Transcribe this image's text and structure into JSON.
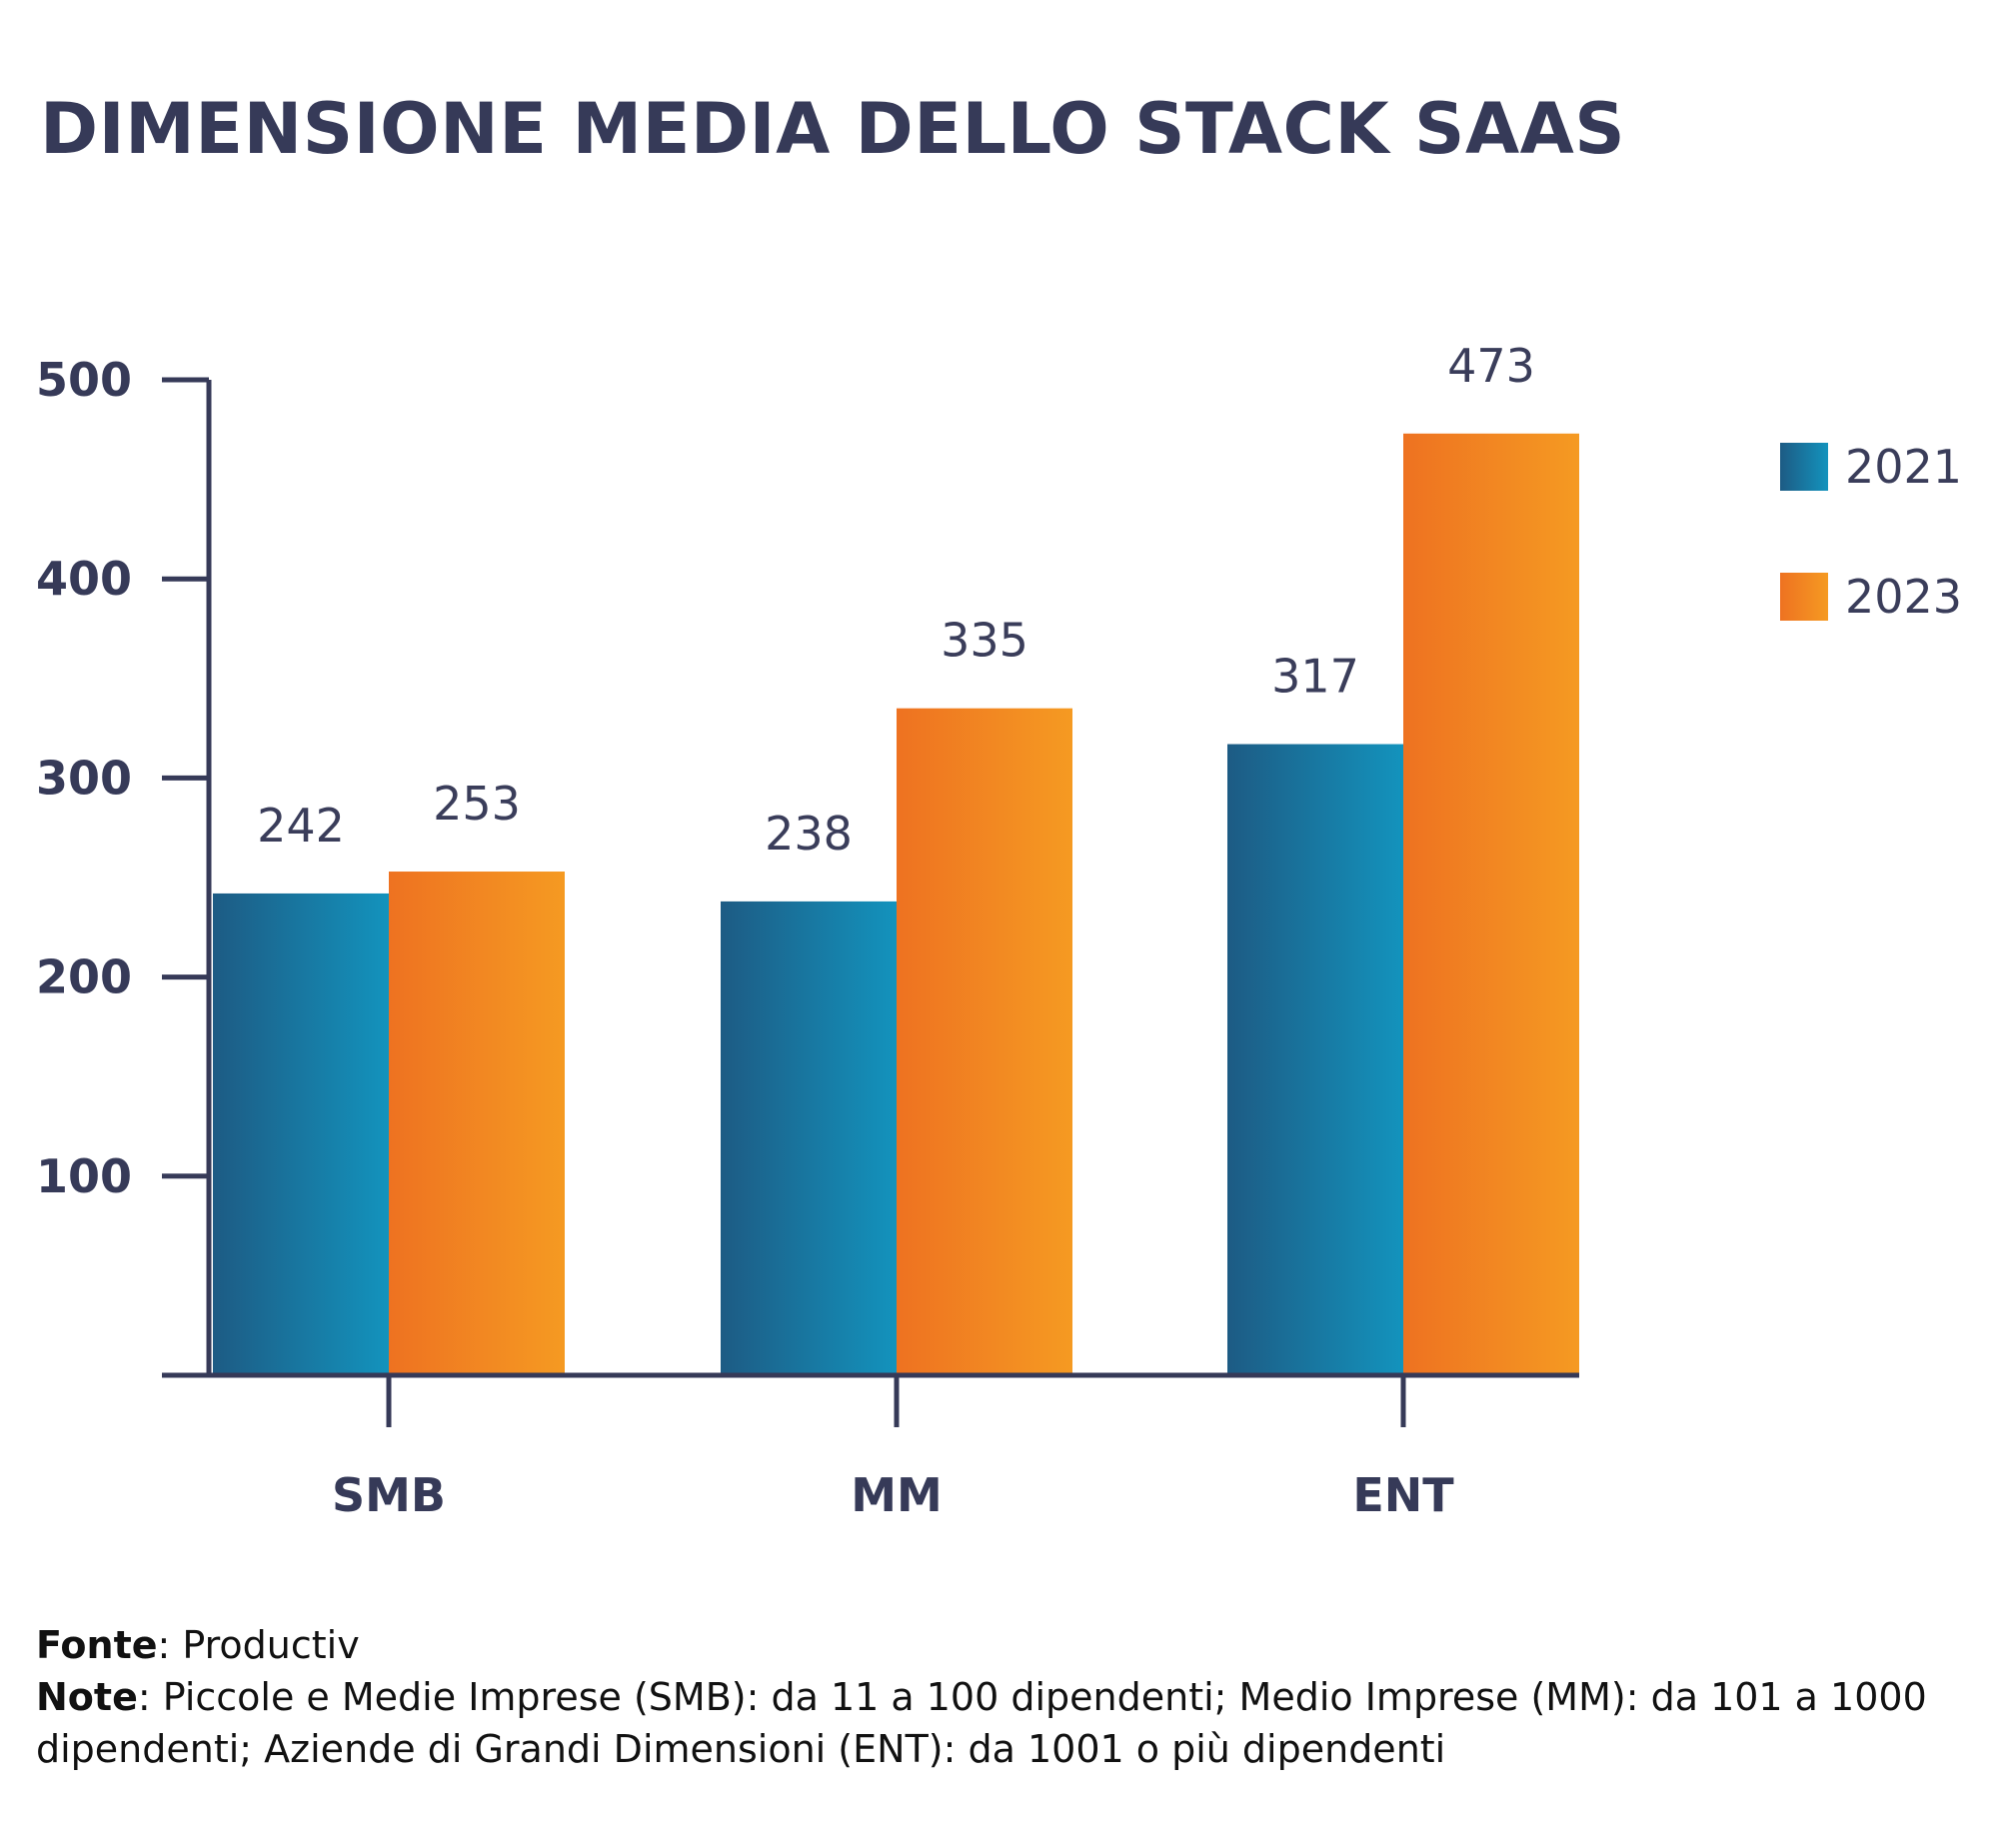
{
  "title": "DIMENSIONE MEDIA DELLO STACK SAAS",
  "chart_data": {
    "type": "bar",
    "title": "DIMENSIONE MEDIA DELLO STACK SAAS",
    "categories": [
      "SMB",
      "MM",
      "ENT"
    ],
    "series": [
      {
        "name": "2021",
        "values": [
          242,
          238,
          317
        ],
        "color_start": "#1d5b84",
        "color_end": "#1393bd"
      },
      {
        "name": "2023",
        "values": [
          253,
          335,
          473
        ],
        "color_start": "#ee7221",
        "color_end": "#f59a22"
      }
    ],
    "y_ticks": [
      "100",
      "200",
      "300",
      "400",
      "500"
    ],
    "ylim": [
      0,
      500
    ],
    "grid": false,
    "legend_position": "right",
    "xlabel": "",
    "ylabel": ""
  },
  "footnote": {
    "source_label": "Fonte",
    "source_text": ": Productiv",
    "note_label": "Note",
    "note_text": ": Piccole e Medie Imprese (SMB): da 11 a 100 dipendenti; Medio Imprese (MM): da 101 a 1000 dipendenti; Aziende di Grandi Dimensioni (ENT): da 1001 o più dipendenti"
  },
  "colors": {
    "text": "#363a58",
    "axis": "#363a58",
    "background": "#ffffff"
  }
}
